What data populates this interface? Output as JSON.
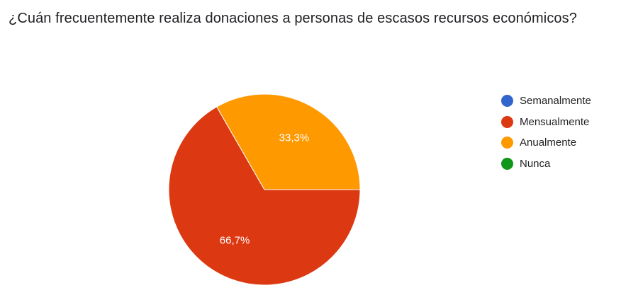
{
  "question": {
    "title": "¿Cuán frecuentemente realiza donaciones a personas de escasos recursos económicos?"
  },
  "chart_data": {
    "type": "pie",
    "categories": [
      "Semanalmente",
      "Mensualmente",
      "Anualmente",
      "Nunca"
    ],
    "values": [
      0,
      66.7,
      33.3,
      0
    ],
    "value_labels": [
      "",
      "66,7%",
      "33,3%",
      ""
    ],
    "colors": [
      "#3366cc",
      "#dc3912",
      "#ff9900",
      "#109618"
    ],
    "legend_position": "right",
    "start_angle_deg": 0,
    "direction": "clockwise"
  }
}
